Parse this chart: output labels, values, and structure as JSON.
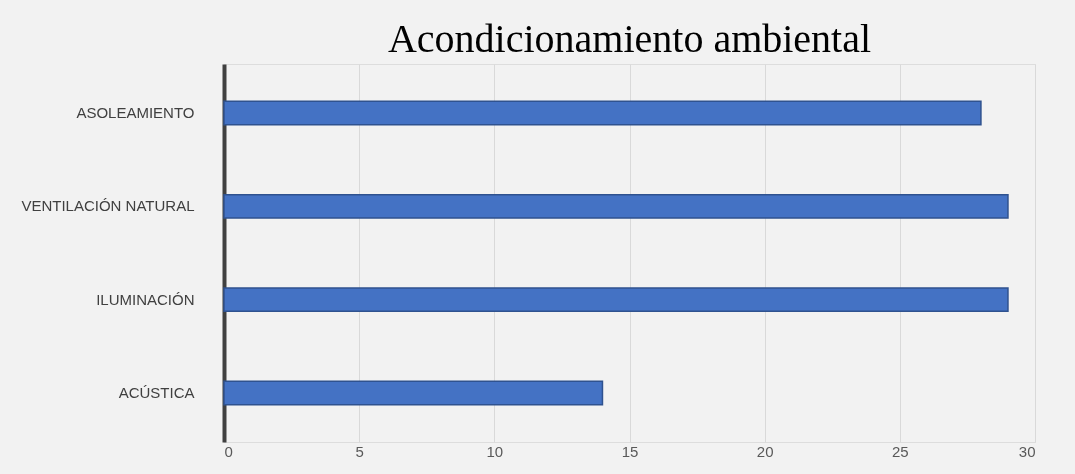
{
  "chart_data": {
    "type": "bar",
    "orientation": "horizontal",
    "title": "Acondicionamiento ambiental",
    "categories": [
      "ASOLEAMIENTO",
      "VENTILACIÓN NATURAL",
      "ILUMINACIÓN",
      "ACÚSTICA"
    ],
    "values": [
      28,
      29,
      29,
      14
    ],
    "color": "#4472c4",
    "xlim": [
      0,
      30
    ],
    "xticks": [
      0,
      5,
      10,
      15,
      20,
      25,
      30
    ],
    "grid": "x"
  }
}
